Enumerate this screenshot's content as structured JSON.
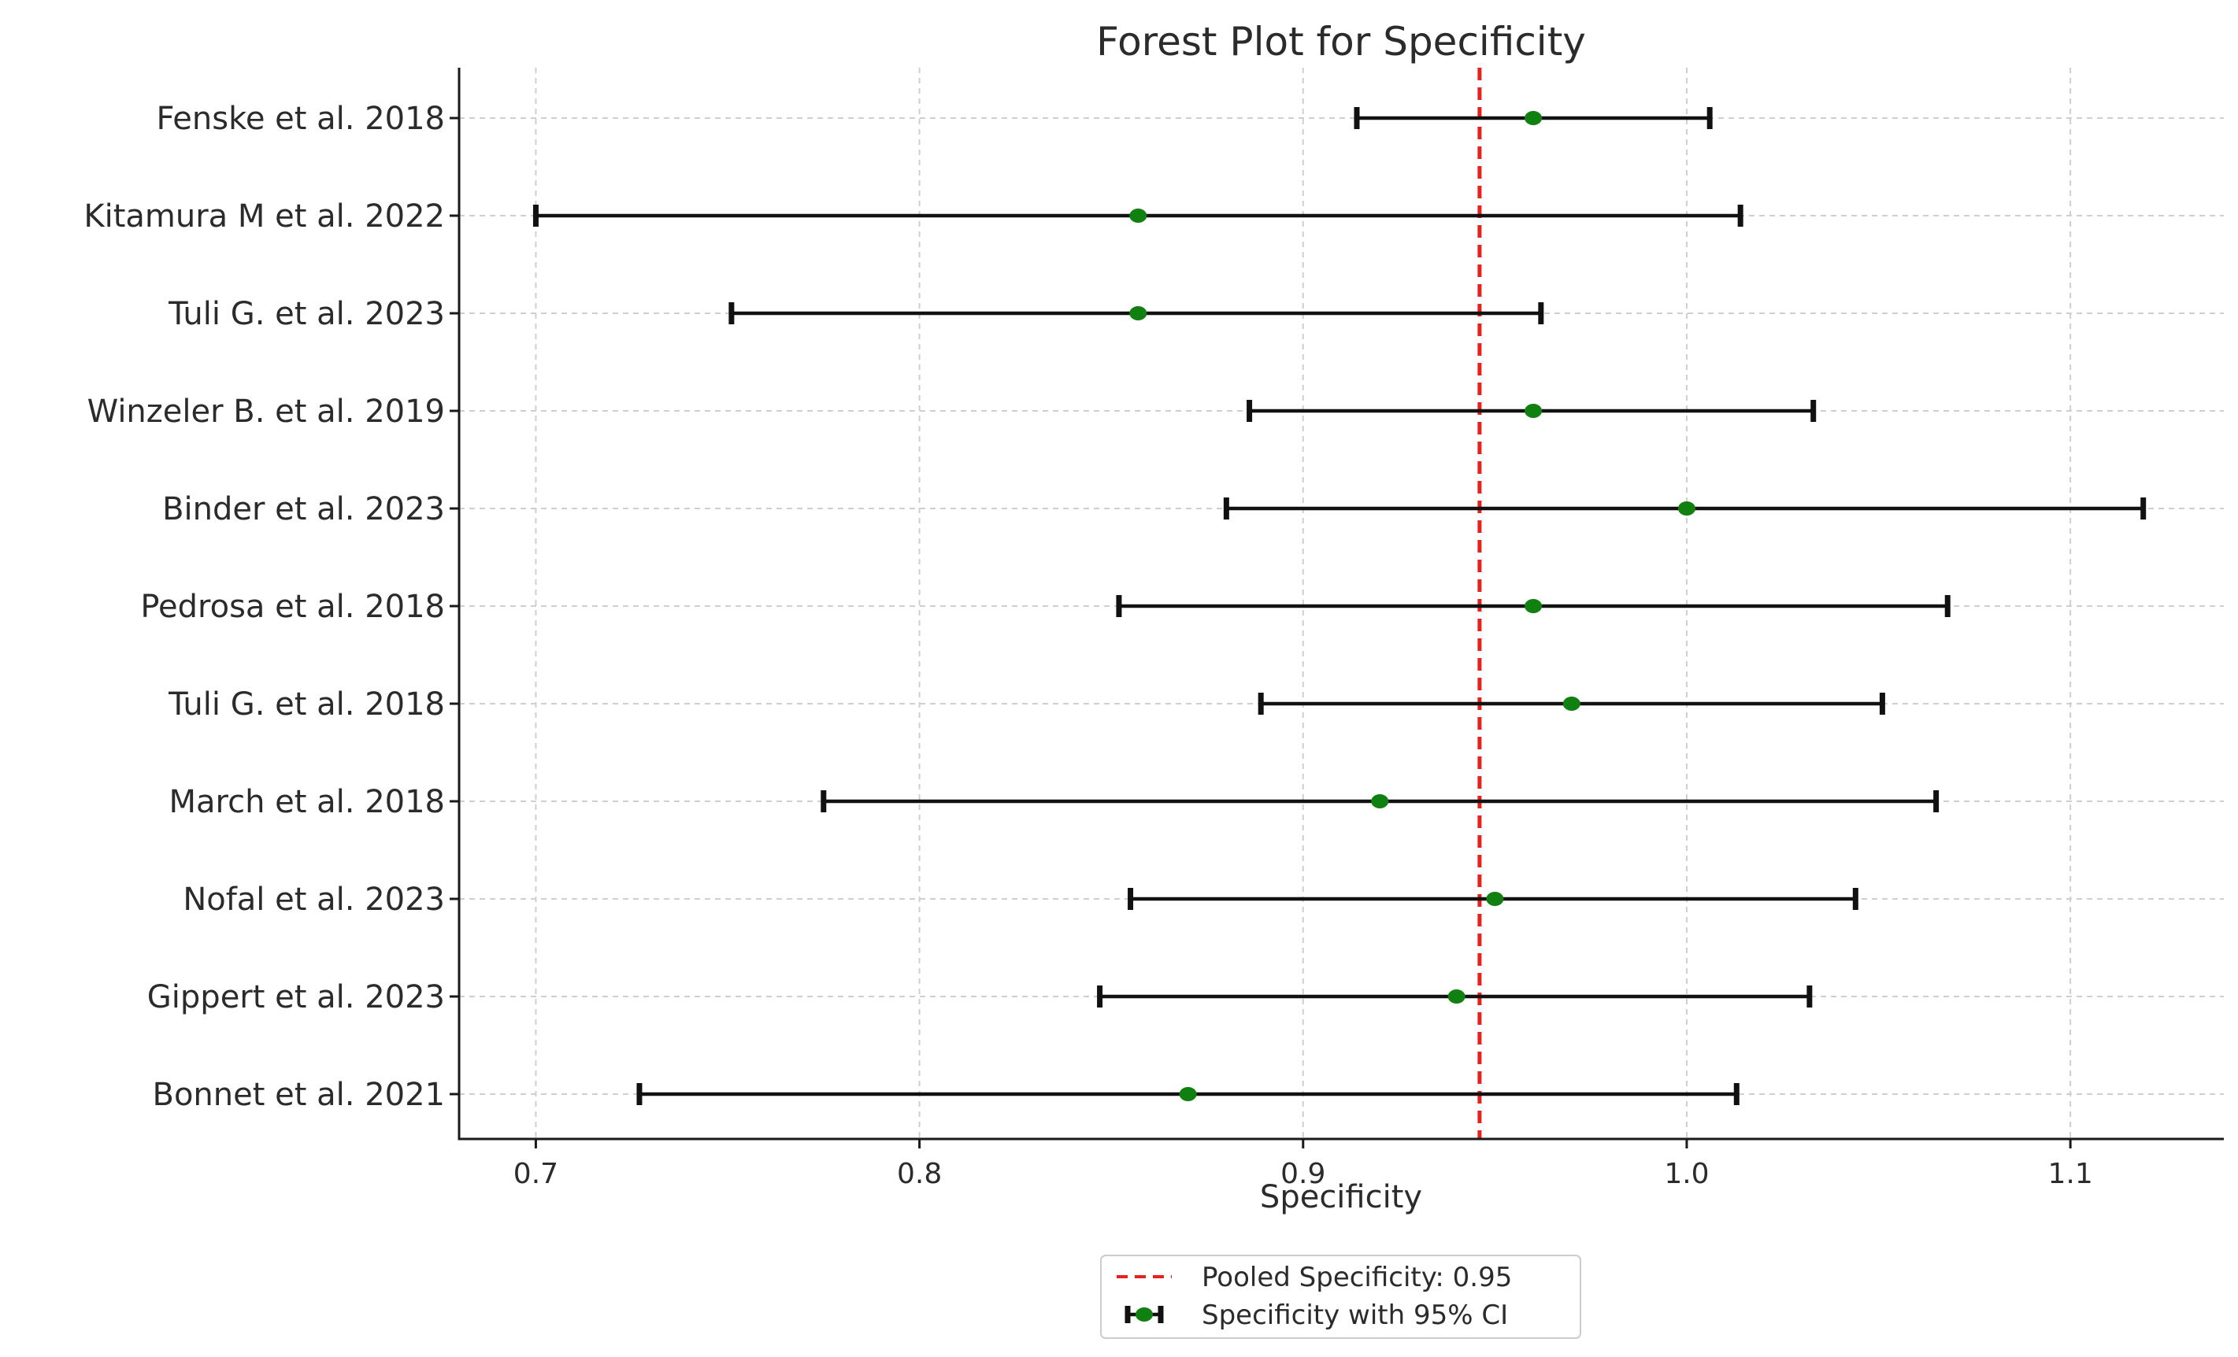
{
  "chart_data": {
    "type": "scatter",
    "title": "Forest Plot for Specificity",
    "xlabel": "Specificity",
    "ylabel": "",
    "xlim": [
      0.68,
      1.14
    ],
    "xticks": [
      "0.7",
      "0.8",
      "0.9",
      "1.0",
      "1.1"
    ],
    "xtick_values": [
      0.7,
      0.8,
      0.9,
      1.0,
      1.1
    ],
    "grid": true,
    "legend_position": "bottom-center",
    "pooled": {
      "label": "Pooled Specificity: 0.95",
      "value": 0.946,
      "color": "#e8211e"
    },
    "series": [
      {
        "name": "Specificity with 95% CI",
        "color": "#108010",
        "studies": [
          {
            "label": "Fenske et al. 2018",
            "estimate": 0.96,
            "lower": 0.914,
            "upper": 1.006
          },
          {
            "label": "Kitamura M et al. 2022",
            "estimate": 0.857,
            "lower": 0.7,
            "upper": 1.014
          },
          {
            "label": "Tuli G. et al. 2023",
            "estimate": 0.857,
            "lower": 0.751,
            "upper": 0.962
          },
          {
            "label": "Winzeler B. et al. 2019",
            "estimate": 0.96,
            "lower": 0.886,
            "upper": 1.033
          },
          {
            "label": "Binder et al. 2023",
            "estimate": 1.0,
            "lower": 0.88,
            "upper": 1.119
          },
          {
            "label": "Pedrosa et al. 2018",
            "estimate": 0.96,
            "lower": 0.852,
            "upper": 1.068
          },
          {
            "label": "Tuli G. et al. 2018",
            "estimate": 0.97,
            "lower": 0.889,
            "upper": 1.051
          },
          {
            "label": "March et al. 2018",
            "estimate": 0.92,
            "lower": 0.775,
            "upper": 1.065
          },
          {
            "label": "Nofal et al. 2023",
            "estimate": 0.95,
            "lower": 0.855,
            "upper": 1.044
          },
          {
            "label": "Gippert et al. 2023",
            "estimate": 0.94,
            "lower": 0.847,
            "upper": 1.032
          },
          {
            "label": "Bonnet et al. 2021",
            "estimate": 0.87,
            "lower": 0.727,
            "upper": 1.013
          }
        ]
      }
    ]
  }
}
